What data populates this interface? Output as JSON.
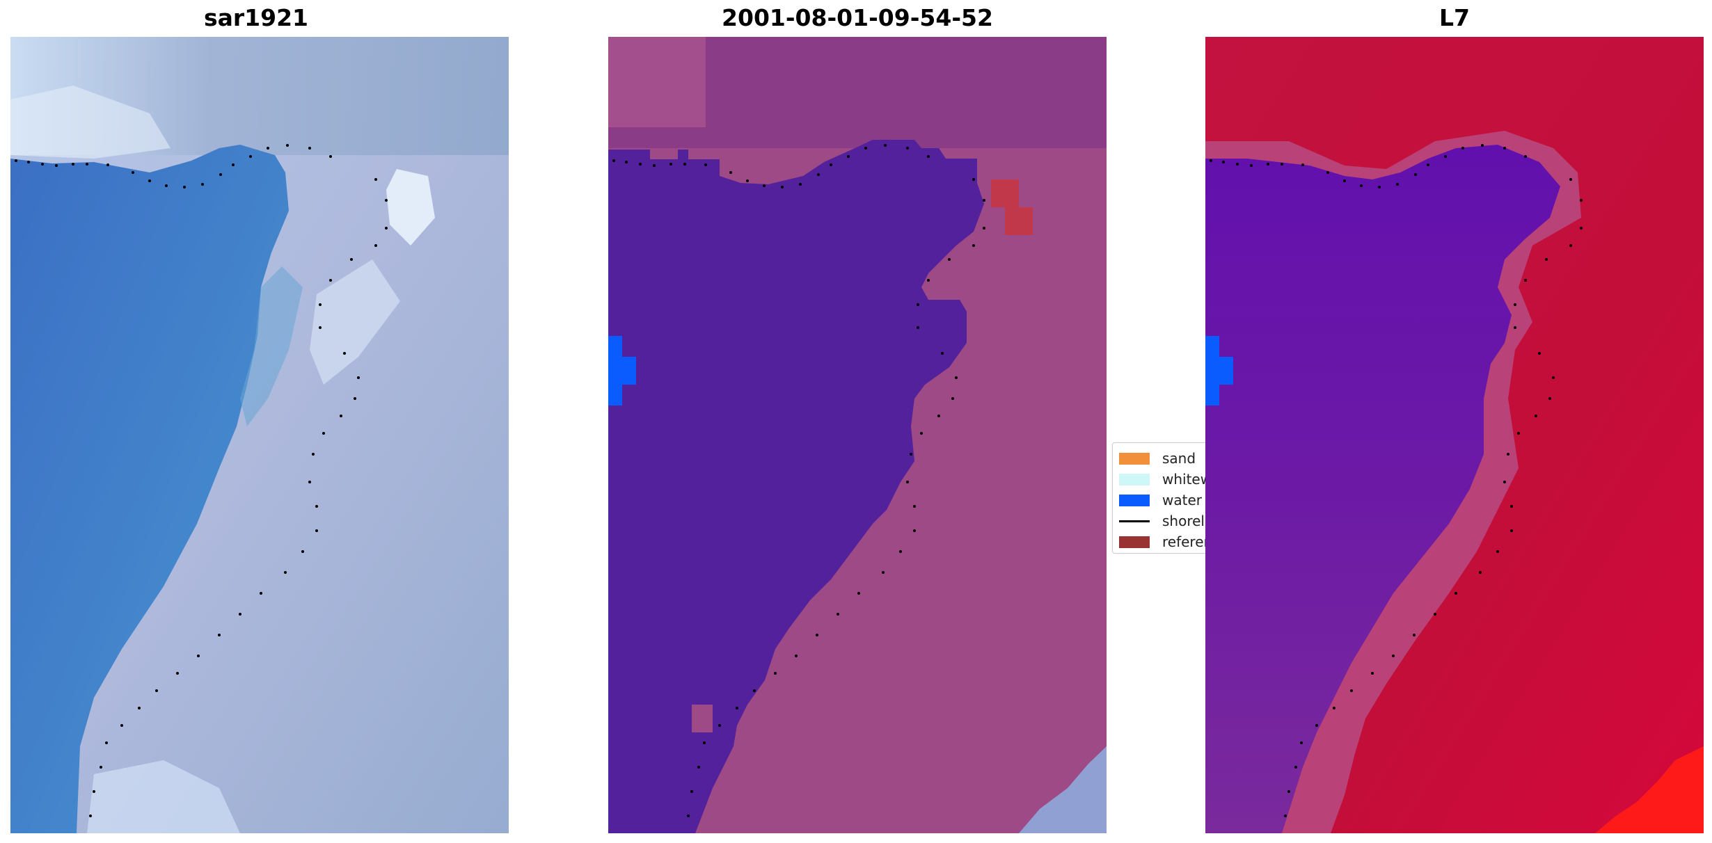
{
  "panels": [
    {
      "title": "sar1921"
    },
    {
      "title": "2001-08-01-09-54-52"
    },
    {
      "title": "L7"
    }
  ],
  "legend": {
    "items": [
      {
        "label": "sand",
        "color": "#f28f3b",
        "kind": "patch"
      },
      {
        "label": "whitewater",
        "color": "#cff7f7",
        "kind": "patch"
      },
      {
        "label": "water",
        "color": "#0b5cff",
        "kind": "patch"
      },
      {
        "label": "shoreline",
        "color": "#000000",
        "kind": "line"
      },
      {
        "label": "reference",
        "color": "#993333",
        "kind": "patch"
      }
    ]
  },
  "colors": {
    "rgb_water": "#3e78c8",
    "rgb_land": "#a4b4d6",
    "class_water": "#53219b",
    "class_land": "#9e4a86",
    "ndwi_water": "#6a1ea6",
    "ndwi_land": "#c00f3c"
  }
}
